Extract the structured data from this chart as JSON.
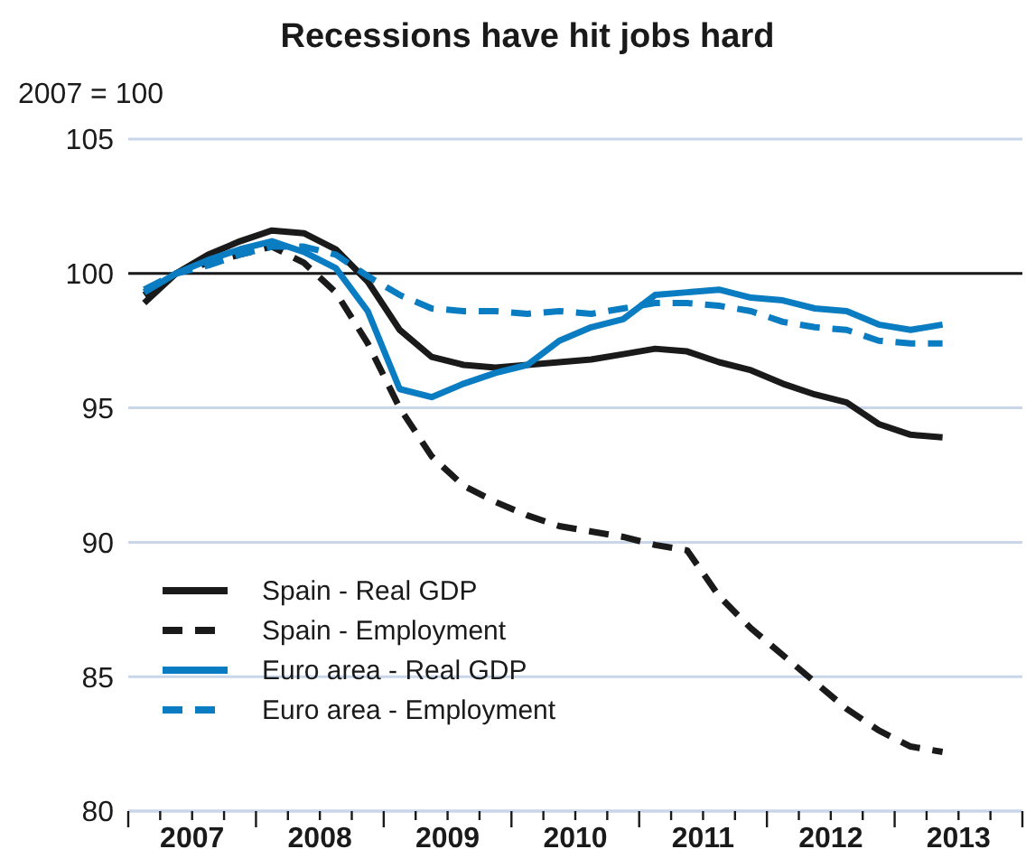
{
  "chart_data": {
    "type": "line",
    "title": "Recessions have hit jobs hard",
    "ylabel": "2007 = 100",
    "x": [
      2007.125,
      2007.375,
      2007.625,
      2007.875,
      2008.125,
      2008.375,
      2008.625,
      2008.875,
      2009.125,
      2009.375,
      2009.625,
      2009.875,
      2010.125,
      2010.375,
      2010.625,
      2010.875,
      2011.125,
      2011.375,
      2011.625,
      2011.875,
      2012.125,
      2012.375,
      2012.625,
      2012.875,
      2013.125,
      2013.375
    ],
    "series": [
      {
        "name": "Spain - Real GDP",
        "color": "#1a1a1a",
        "line_style": "solid",
        "values": [
          98.9,
          100.0,
          100.7,
          101.2,
          101.6,
          101.5,
          100.9,
          99.7,
          97.9,
          96.9,
          96.6,
          96.5,
          96.6,
          96.7,
          96.8,
          97.0,
          97.2,
          97.1,
          96.7,
          96.4,
          95.9,
          95.5,
          95.2,
          94.4,
          94.0,
          93.9
        ]
      },
      {
        "name": "Spain - Employment",
        "color": "#1a1a1a",
        "line_style": "dashed",
        "values": [
          99.2,
          100.0,
          100.4,
          100.7,
          101.0,
          100.4,
          99.3,
          97.4,
          95.0,
          93.2,
          92.1,
          91.5,
          91.0,
          90.6,
          90.4,
          90.2,
          89.9,
          89.7,
          88.0,
          86.8,
          85.8,
          84.8,
          83.8,
          83.0,
          82.4,
          82.2
        ]
      },
      {
        "name": "Euro area - Real GDP",
        "color": "#0a7cc1",
        "line_style": "solid",
        "values": [
          99.3,
          100.0,
          100.5,
          100.9,
          101.2,
          100.8,
          100.2,
          98.6,
          95.7,
          95.4,
          95.9,
          96.3,
          96.6,
          97.5,
          98.0,
          98.3,
          99.2,
          99.3,
          99.4,
          99.1,
          99.0,
          98.7,
          98.6,
          98.1,
          97.9,
          98.1
        ]
      },
      {
        "name": "Euro area - Employment",
        "color": "#0a7cc1",
        "line_style": "dashed",
        "values": [
          99.4,
          100.0,
          100.3,
          100.7,
          101.0,
          101.0,
          100.7,
          99.9,
          99.2,
          98.7,
          98.6,
          98.6,
          98.5,
          98.6,
          98.5,
          98.7,
          98.9,
          98.9,
          98.8,
          98.6,
          98.2,
          98.0,
          97.9,
          97.5,
          97.4,
          97.4
        ]
      }
    ],
    "xlim": [
      2007,
      2014
    ],
    "xticks": [
      {
        "value": 2007,
        "label": null
      },
      {
        "value": 2007.25,
        "label": null
      },
      {
        "value": 2007.5,
        "label": "2007"
      },
      {
        "value": 2007.75,
        "label": null
      },
      {
        "value": 2008,
        "label": null
      },
      {
        "value": 2008.25,
        "label": null
      },
      {
        "value": 2008.5,
        "label": "2008"
      },
      {
        "value": 2008.75,
        "label": null
      },
      {
        "value": 2009,
        "label": null
      },
      {
        "value": 2009.25,
        "label": null
      },
      {
        "value": 2009.5,
        "label": "2009"
      },
      {
        "value": 2009.75,
        "label": null
      },
      {
        "value": 2010,
        "label": null
      },
      {
        "value": 2010.25,
        "label": null
      },
      {
        "value": 2010.5,
        "label": "2010"
      },
      {
        "value": 2010.75,
        "label": null
      },
      {
        "value": 2011,
        "label": null
      },
      {
        "value": 2011.25,
        "label": null
      },
      {
        "value": 2011.5,
        "label": "2011"
      },
      {
        "value": 2011.75,
        "label": null
      },
      {
        "value": 2012,
        "label": null
      },
      {
        "value": 2012.25,
        "label": null
      },
      {
        "value": 2012.5,
        "label": "2012"
      },
      {
        "value": 2012.75,
        "label": null
      },
      {
        "value": 2013,
        "label": null
      },
      {
        "value": 2013.25,
        "label": null
      },
      {
        "value": 2013.5,
        "label": "2013"
      },
      {
        "value": 2013.75,
        "label": null
      },
      {
        "value": 2014,
        "label": null
      }
    ],
    "ylim": [
      80,
      105
    ],
    "yticks": [
      80,
      85,
      90,
      95,
      100,
      105
    ],
    "grid": "y",
    "ref_lines": [
      {
        "axis": "y",
        "value": 100,
        "color": "#1a1a1a"
      }
    ],
    "legend": "bottom left",
    "marker": "none"
  }
}
